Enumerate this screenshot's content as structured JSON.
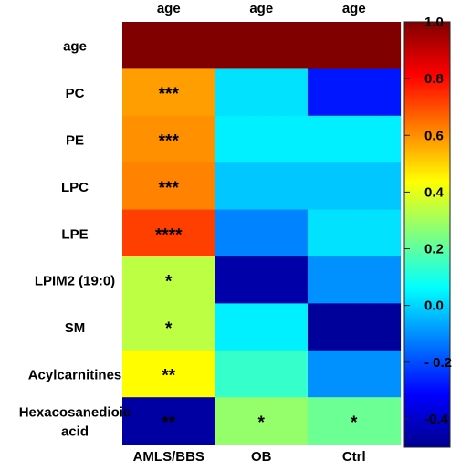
{
  "chart_data": {
    "type": "heatmap",
    "columns_top": [
      "age",
      "age",
      "age"
    ],
    "columns_bottom": [
      "AMLS/BBS",
      "OB",
      "Ctrl"
    ],
    "rows": [
      [
        "age"
      ],
      [
        "PC"
      ],
      [
        "PE"
      ],
      [
        "LPC"
      ],
      [
        "LPE"
      ],
      [
        "LPIM2 (19:0)"
      ],
      [
        "SM"
      ],
      [
        "Acylcarnitines"
      ],
      [
        "Hexacosanedioic",
        "acid"
      ]
    ],
    "values": [
      [
        1.0,
        1.0,
        1.0
      ],
      [
        0.58,
        0.02,
        -0.28
      ],
      [
        0.6,
        0.04,
        0.04
      ],
      [
        0.62,
        -0.02,
        -0.02
      ],
      [
        0.72,
        -0.12,
        0.02
      ],
      [
        0.34,
        -0.44,
        -0.1
      ],
      [
        0.34,
        0.04,
        -0.46
      ],
      [
        0.44,
        0.14,
        -0.1
      ],
      [
        -0.45,
        0.28,
        0.22
      ]
    ],
    "annotations": [
      [
        "",
        "",
        ""
      ],
      [
        "***",
        "",
        ""
      ],
      [
        "***",
        "",
        ""
      ],
      [
        "***",
        "",
        ""
      ],
      [
        "****",
        "",
        ""
      ],
      [
        "*",
        "",
        ""
      ],
      [
        "*",
        "",
        ""
      ],
      [
        "**",
        "",
        ""
      ],
      [
        "**",
        "*",
        "*"
      ]
    ],
    "colorscale": {
      "name": "jet",
      "min": -0.5,
      "max": 1.0,
      "tick_values": [
        1.0,
        0.8,
        0.6,
        0.4,
        0.2,
        0.0,
        -0.2,
        -0.4
      ],
      "tick_labels": [
        "1.0",
        "0.8",
        "0.6",
        "0.4",
        "0.2",
        "0.0",
        "- 0.2",
        "-0.4"
      ]
    },
    "grid": false,
    "legend_placement": "right"
  }
}
